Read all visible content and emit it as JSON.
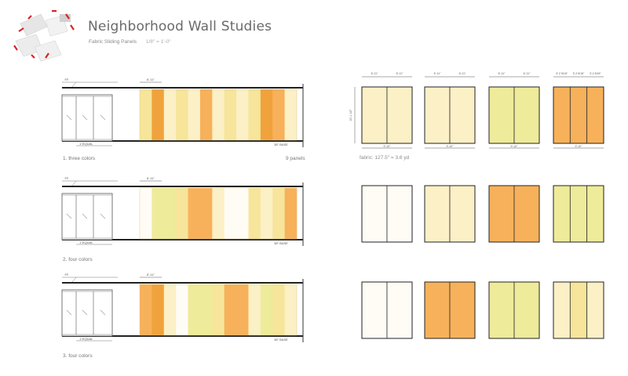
{
  "header": {
    "title": "Neighborhood  Wall Studies",
    "subtitle": "Fabric Sliding Panels",
    "scale": "1/8\" = 1'-0\""
  },
  "notes": {
    "panel_count": "9 panels",
    "fabric": "fabric: 127.5\" = 3.6 yd"
  },
  "dims": {
    "panel_width": "6'-11\"",
    "split_width": "3'-2 5/16\"",
    "bay_height": "10'-1 1/2\"",
    "bay_width": "9'-10\"",
    "ff_mark": "FF",
    "equal": "2 EQUAL",
    "base": "38\" BASE"
  },
  "colors": {
    "white": "#fffcf5",
    "pale": "#fbf0c6",
    "yellow": "#f6e59a",
    "lime": "#eeeb9a",
    "orange": "#f7b15a",
    "dark": "#f0a33c"
  },
  "studies": [
    {
      "label": "1.  three colors",
      "strip": [
        "yellow",
        "dark",
        "pale",
        "yellow",
        "pale",
        "orange",
        "pale",
        "yellow",
        "pale",
        "yellow",
        "dark",
        "orange",
        "pale"
      ],
      "swatches": [
        [
          "pale",
          "pale"
        ],
        [
          "pale",
          "pale"
        ],
        [
          "lime",
          "lime"
        ],
        [
          "orange",
          "orange",
          "orange"
        ]
      ]
    },
    {
      "label": "2.  four colors",
      "strip": [
        "white",
        "lime",
        "lime",
        "yellow",
        "orange",
        "orange",
        "pale",
        "white",
        "white",
        "yellow",
        "pale",
        "yellow",
        "orange"
      ],
      "swatches": [
        [
          "white",
          "white"
        ],
        [
          "pale",
          "pale"
        ],
        [
          "orange",
          "orange"
        ],
        [
          "lime",
          "lime",
          "lime"
        ]
      ]
    },
    {
      "label": "3.  four colors",
      "strip": [
        "orange",
        "dark",
        "pale",
        "white",
        "lime",
        "lime",
        "yellow",
        "orange",
        "orange",
        "pale",
        "lime",
        "yellow",
        "pale"
      ],
      "swatches": [
        [
          "white",
          "white"
        ],
        [
          "orange",
          "orange"
        ],
        [
          "lime",
          "lime"
        ],
        [
          "pale",
          "yellow",
          "pale"
        ]
      ]
    }
  ]
}
